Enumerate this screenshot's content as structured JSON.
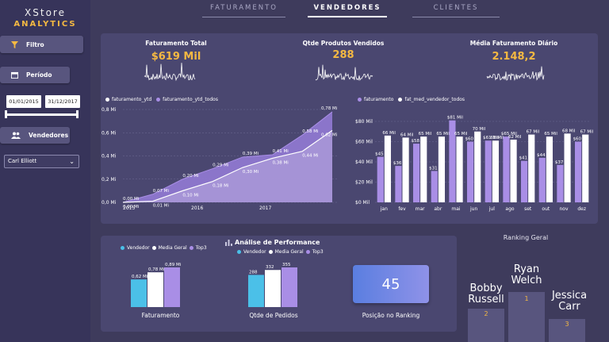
{
  "brand": {
    "line1": "XStore",
    "line2": "ANALYTICS"
  },
  "sidebar": {
    "filter_label": "Filtro",
    "period_label": "Período",
    "date_start": "01/01/2015",
    "date_end": "31/12/2017",
    "sellers_label": "Vendedores",
    "selected_seller": "Carl Elliott"
  },
  "tabs": [
    {
      "label": "FATURAMENTO"
    },
    {
      "label": "VENDEDORES"
    },
    {
      "label": "CLIENTES"
    }
  ],
  "kpis": [
    {
      "title": "Faturamento Total",
      "value": "$619 Mil"
    },
    {
      "title": "Qtde Produtos Vendidos",
      "value": "288"
    },
    {
      "title": "Média Faturamento Diário",
      "value": "2.148,2"
    }
  ],
  "colors": {
    "accent": "#f5b942",
    "purple": "#a98ee6",
    "white": "#ffffff",
    "blue": "#4bc0e8",
    "panel": "#4a4770"
  },
  "chart_data": [
    {
      "type": "area",
      "series": [
        {
          "name": "faturamento_ytd",
          "values": [
            0.0,
            0.01,
            0.1,
            0.18,
            0.3,
            0.38,
            0.44,
            0.62
          ]
        },
        {
          "name": "faturamento_ytd_todos",
          "values": [
            0.0,
            0.07,
            0.2,
            0.29,
            0.39,
            0.41,
            0.58,
            0.78
          ]
        }
      ],
      "ytd_labels": [
        "0,00 Mi",
        "0,01 Mi",
        "0,10 Mi",
        "0,18 Mi",
        "0,30 Mi",
        "0,38 Mi",
        "0,44 Mi",
        "0,62 Mi"
      ],
      "todos_labels": [
        "0,00 Mi",
        "0,07 Mi",
        "0,20 Mi",
        "0,29 Mi",
        "0,39 Mi",
        "0,41 Mi",
        "0,58 Mi",
        "0,78 Mi"
      ],
      "x_ticks": [
        "2015",
        "2016",
        "2017"
      ],
      "y_ticks": [
        "0,0 Mi",
        "0,2 Mi",
        "0,4 Mi",
        "0,6 Mi",
        "0,8 Mi"
      ],
      "ylim": [
        0,
        0.8
      ]
    },
    {
      "type": "bar",
      "categories": [
        "jan",
        "fev",
        "mar",
        "abr",
        "mai",
        "jun",
        "jul",
        "ago",
        "set",
        "out",
        "nov",
        "dez"
      ],
      "series": [
        {
          "name": "faturamento",
          "values": [
            45,
            36,
            58,
            31,
            81,
            60,
            61,
            65,
            41,
            44,
            37,
            60
          ]
        },
        {
          "name": "fat_med_vendedor_todos",
          "values": [
            66,
            64,
            65,
            65,
            65,
            70,
            61,
            62,
            67,
            65,
            68,
            67
          ]
        }
      ],
      "labels_a": [
        "$45 Mil",
        "$36 Mil",
        "$58 Mil",
        "$31 Mil",
        "$81 Mil",
        "$60 Mil",
        "$61 Mil",
        "$65 Mil",
        "$41 Mil",
        "$44 Mil",
        "$37 Mil",
        "$60 Mil"
      ],
      "labels_b": [
        "66 Mil",
        "64 Mil",
        "65 Mil",
        "65 Mil",
        "65 Mil",
        "70 Mil",
        "61 Mil",
        "62 Mil",
        "67 Mil",
        "65 Mil",
        "68 Mil",
        "67 Mil"
      ],
      "y_ticks": [
        "$0 Mil",
        "$20 Mil",
        "$40 Mil",
        "$60 Mil",
        "$80 Mil"
      ],
      "ylim": [
        0,
        80
      ]
    },
    {
      "type": "bar",
      "title": "Faturamento",
      "series": [
        {
          "name": "Vendedor",
          "value": 0.62,
          "label": "0,62 Mi"
        },
        {
          "name": "Media Geral",
          "value": 0.78,
          "label": "0,78 Mi"
        },
        {
          "name": "Top3",
          "value": 0.89,
          "label": "0,89 Mi"
        }
      ]
    },
    {
      "type": "bar",
      "title": "Qtde de Pedidos",
      "series": [
        {
          "name": "Vendedor",
          "value": 288,
          "label": "288"
        },
        {
          "name": "Media Geral",
          "value": 332,
          "label": "332"
        },
        {
          "name": "Top3",
          "value": 355,
          "label": "355"
        }
      ]
    }
  ],
  "performance": {
    "title": "Análise de Performance",
    "legend": [
      "Vendedor",
      "Media Geral",
      "Top3"
    ],
    "position_value": "45",
    "position_caption": "Posição no Ranking"
  },
  "ranking": {
    "title": "Ranking Geral",
    "items": [
      {
        "name_line1": "Bobby",
        "name_line2": "Russell",
        "rank": "2"
      },
      {
        "name_line1": "Ryan",
        "name_line2": "Welch",
        "rank": "1"
      },
      {
        "name_line1": "Jessica",
        "name_line2": "Carr",
        "rank": "3"
      }
    ]
  }
}
